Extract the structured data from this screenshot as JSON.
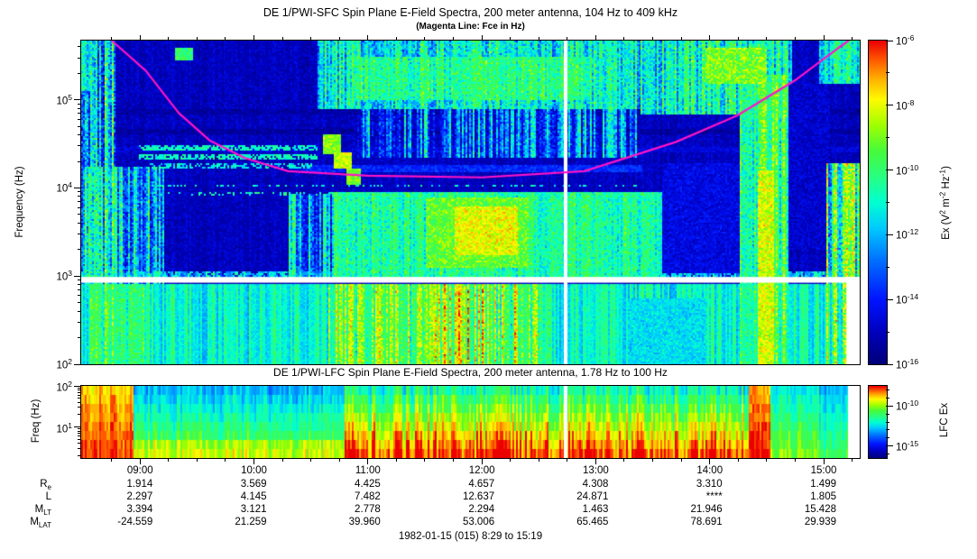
{
  "header": {
    "title": "DE 1/PWI-SFC  Spin Plane E-Field Spectra, 200 meter antenna, 104 Hz to 409 kHz",
    "subtitle": "(Magenta Line: Fce in Hz)"
  },
  "sfc_panel": {
    "ylabel": "Frequency (Hz)",
    "ytick_exponents": [
      5,
      4,
      3,
      2
    ],
    "colorbar": {
      "label": "Ex (V^2 m^-2 Hz^-1)",
      "label_parts": [
        [
          "t",
          "Ex (V"
        ],
        [
          "sup",
          "2"
        ],
        [
          "t",
          " m"
        ],
        [
          "sup",
          "-2"
        ],
        [
          "t",
          " Hz"
        ],
        [
          "sup",
          "-1"
        ],
        [
          "t",
          ")"
        ]
      ],
      "tick_exponents": [
        -6,
        -8,
        -10,
        -12,
        -14,
        -16
      ],
      "range_log": [
        -16,
        -6
      ]
    }
  },
  "lfc_panel": {
    "title": "DE 1/PWI-LFC  Spin Plane E-Field Spectra, 200 meter antenna, 1.78 Hz to 100 Hz",
    "ylabel": "Freq (Hz)",
    "ytick_exponents": [
      2,
      1
    ],
    "colorbar": {
      "label": "LFC Ex",
      "tick_exponents": [
        -10,
        -15
      ],
      "range_log": [
        -16.5,
        -7.5
      ]
    }
  },
  "xaxis": {
    "tick_labels": [
      "09:00",
      "10:00",
      "11:00",
      "12:00",
      "13:00",
      "14:00",
      "15:00"
    ],
    "tick_hours": [
      9,
      10,
      11,
      12,
      13,
      14,
      15
    ]
  },
  "ephemeris": {
    "rows": [
      {
        "label_main": "R",
        "label_sub": "e",
        "values": [
          "1.914",
          "3.569",
          "4.425",
          "4.657",
          "4.308",
          "3.310",
          "1.499"
        ]
      },
      {
        "label_main": "L",
        "label_sub": "",
        "values": [
          "2.297",
          "4.145",
          "7.482",
          "12.637",
          "24.871",
          "****",
          "1.805"
        ]
      },
      {
        "label_main": "M",
        "label_sub": "LT",
        "values": [
          "3.394",
          "3.121",
          "2.778",
          "2.294",
          "1.463",
          "21.946",
          "15.428"
        ]
      },
      {
        "label_main": "M",
        "label_sub": "LAT",
        "values": [
          "-24.559",
          "21.259",
          "39.960",
          "53.006",
          "65.465",
          "78.691",
          "29.939"
        ]
      }
    ]
  },
  "footer": "1982-01-15 (015) 8:29 to 15:19",
  "chart_data": {
    "type": "heatmap",
    "subtype": "spectrogram",
    "time_range_hours": [
      8.4833,
      15.3167
    ],
    "time_start_label": "8:29",
    "time_end_label": "15:19",
    "data_end_hour": 15.2,
    "data_gap_hour": 12.735,
    "colormap_stops": [
      [
        0.0,
        0,
        0,
        120
      ],
      [
        0.1,
        0,
        0,
        190
      ],
      [
        0.2,
        0,
        20,
        255
      ],
      [
        0.32,
        0,
        110,
        255
      ],
      [
        0.42,
        0,
        200,
        255
      ],
      [
        0.5,
        0,
        255,
        210
      ],
      [
        0.58,
        40,
        255,
        130
      ],
      [
        0.66,
        70,
        250,
        60
      ],
      [
        0.74,
        160,
        255,
        0
      ],
      [
        0.82,
        255,
        250,
        0
      ],
      [
        0.88,
        255,
        180,
        0
      ],
      [
        0.94,
        255,
        90,
        0
      ],
      [
        1.0,
        235,
        0,
        0
      ]
    ],
    "fce": {
      "color": "#ff14c8",
      "points_hour_loghz": [
        [
          8.75,
          5.672
        ],
        [
          9.05,
          5.33
        ],
        [
          9.34,
          4.85
        ],
        [
          9.61,
          4.54
        ],
        [
          9.92,
          4.34
        ],
        [
          10.3,
          4.19
        ],
        [
          11.0,
          4.14
        ],
        [
          12.0,
          4.12
        ],
        [
          12.9,
          4.19
        ],
        [
          13.7,
          4.52
        ],
        [
          14.24,
          4.82
        ],
        [
          14.76,
          5.23
        ],
        [
          15.13,
          5.59
        ],
        [
          15.22,
          5.672
        ]
      ]
    },
    "sfc": {
      "freq_log_range": [
        2.0,
        5.672
      ],
      "value_log_range": [
        -16,
        -6
      ],
      "white_gap_logf": [
        2.925,
        2.99
      ],
      "base_low_v": 0.5,
      "base_high_v": 0.1,
      "low_band_top_logf": 2.93,
      "features": [
        {
          "t": [
            8.483,
            15.317
          ],
          "f": [
            4.62,
            4.69
          ],
          "v": 0.06,
          "vr": 0.02,
          "mode": "set"
        },
        {
          "t": [
            8.483,
            15.317
          ],
          "f": [
            4.84,
            4.91
          ],
          "v": 0.06,
          "vr": 0.02,
          "mode": "set"
        },
        {
          "t": [
            8.483,
            15.317
          ],
          "f": [
            4.41,
            4.47
          ],
          "v": 0.14,
          "vr": 0.03,
          "mode": "set"
        },
        {
          "t": [
            8.483,
            8.58
          ],
          "f": [
            5.1,
            5.672
          ],
          "v": 0.45,
          "vr": 0.2,
          "streak": 0.5
        },
        {
          "t": [
            8.483,
            8.78
          ],
          "f": [
            2.0,
            5.672
          ],
          "v": 0.42,
          "vr": 0.3,
          "streak": 0.9
        },
        {
          "t": [
            8.483,
            9.2
          ],
          "f": [
            2.93,
            4.25
          ],
          "v": 0.4,
          "vr": 0.25,
          "streak": 0.7
        },
        {
          "t": [
            8.55,
            9.05
          ],
          "f": [
            2.0,
            2.93
          ],
          "v": 0.6,
          "vr": 0.15,
          "streak": 0.4
        },
        {
          "t": [
            8.98,
            10.55
          ],
          "f": [
            4.44,
            4.5
          ],
          "v": 0.52,
          "vr": 0.1,
          "dash": 0.7
        },
        {
          "t": [
            8.98,
            10.55
          ],
          "f": [
            4.33,
            4.385
          ],
          "v": 0.52,
          "vr": 0.1,
          "dash": 0.7
        },
        {
          "t": [
            9.08,
            10.5
          ],
          "f": [
            4.24,
            4.285
          ],
          "v": 0.48,
          "vr": 0.1,
          "dash": 0.55
        },
        {
          "t": [
            9.0,
            13.35
          ],
          "f": [
            4.02,
            4.055
          ],
          "v": 0.5,
          "vr": 0.12,
          "dash": 0.32
        },
        {
          "t": [
            9.15,
            13.3
          ],
          "f": [
            3.92,
            3.955
          ],
          "v": 0.52,
          "vr": 0.12,
          "dash": 0.28
        },
        {
          "t": [
            9.3,
            9.45
          ],
          "f": [
            5.45,
            5.6
          ],
          "v": 0.6,
          "vr": 0.15
        },
        {
          "t": [
            10.55,
            13.38
          ],
          "f": [
            4.9,
            5.672
          ],
          "v": 0.48,
          "vr": 0.22,
          "streak": 0.5
        },
        {
          "t": [
            10.85,
            12.95
          ],
          "f": [
            5.0,
            5.5
          ],
          "v": 0.56,
          "vr": 0.18,
          "streak": 0.3
        },
        {
          "t": [
            10.9,
            13.35
          ],
          "f": [
            4.35,
            4.95
          ],
          "v": 0.26,
          "vr": 0.22,
          "streak": 0.9
        },
        {
          "t": [
            13.38,
            14.72
          ],
          "f": [
            4.85,
            5.672
          ],
          "v": 0.5,
          "vr": 0.22,
          "streak": 0.5
        },
        {
          "t": [
            13.95,
            14.5
          ],
          "f": [
            5.2,
            5.6
          ],
          "v": 0.7,
          "vr": 0.18
        },
        {
          "t": [
            14.95,
            15.317
          ],
          "f": [
            5.2,
            5.672
          ],
          "v": 0.5,
          "vr": 0.2,
          "streak": 0.4
        },
        {
          "t": [
            10.3,
            10.72
          ],
          "f": [
            2.99,
            3.95
          ],
          "v": 0.34,
          "vr": 0.22,
          "streak": 0.8
        },
        {
          "t": [
            10.7,
            13.58
          ],
          "f": [
            2.99,
            3.97
          ],
          "v": 0.55,
          "vr": 0.16,
          "streak": 0.3
        },
        {
          "t": [
            11.5,
            12.4
          ],
          "f": [
            3.1,
            3.9
          ],
          "v": 0.68,
          "vr": 0.16
        },
        {
          "t": [
            11.75,
            12.3
          ],
          "f": [
            3.25,
            3.8
          ],
          "v": 0.8,
          "vr": 0.12
        },
        {
          "t": [
            10.4,
            13.4
          ],
          "f": [
            4.18,
            4.27
          ],
          "v": 0.22,
          "vr": 0.06
        },
        {
          "t": [
            8.483,
            15.2
          ],
          "f": [
            2.99,
            3.07
          ],
          "v": 0.42,
          "vr": 0.15,
          "streak": 0.4,
          "dash": 0.85
        },
        {
          "t": [
            10.65,
            12.6
          ],
          "f": [
            2.0,
            2.93
          ],
          "v": 0.62,
          "vr": 0.18,
          "streak": 0.6
        },
        {
          "t": [
            11.55,
            12.35
          ],
          "f": [
            2.0,
            2.93
          ],
          "v": 0.7,
          "vr": 0.2,
          "streak": 0.7
        },
        {
          "t": [
            13.28,
            13.95
          ],
          "f": [
            2.0,
            2.75
          ],
          "v": 0.45,
          "vr": 0.08,
          "mode": "set"
        },
        {
          "t": [
            14.25,
            14.68
          ],
          "f": [
            2.0,
            5.3
          ],
          "v": 0.58,
          "vr": 0.2,
          "streak": 0.5
        },
        {
          "t": [
            14.42,
            14.55
          ],
          "f": [
            2.0,
            4.2
          ],
          "v": 0.78,
          "vr": 0.15
        },
        {
          "t": [
            13.58,
            14.25
          ],
          "f": [
            3.05,
            4.3
          ],
          "v": 0.15,
          "vr": 0.08,
          "mode": "set"
        },
        {
          "t": [
            14.68,
            15.05
          ],
          "f": [
            3.3,
            5.2
          ],
          "v": 0.12,
          "vr": 0.06,
          "mode": "set"
        },
        {
          "t": [
            15.02,
            15.317
          ],
          "f": [
            2.0,
            4.3
          ],
          "v": 0.55,
          "vr": 0.25,
          "streak": 0.8
        },
        {
          "t": [
            10.6,
            10.75
          ],
          "f": [
            4.4,
            4.62
          ],
          "v": 0.72,
          "vr": 0.1
        },
        {
          "t": [
            10.7,
            10.85
          ],
          "f": [
            4.22,
            4.42
          ],
          "v": 0.78,
          "vr": 0.1
        },
        {
          "t": [
            10.8,
            10.93
          ],
          "f": [
            4.05,
            4.24
          ],
          "v": 0.7,
          "vr": 0.1
        }
      ]
    },
    "lfc": {
      "freq_log_range": [
        0.25,
        2.0
      ],
      "value_log_range": [
        -16.5,
        -7.5
      ],
      "periods": [
        {
          "t": [
            8.483,
            8.93
          ],
          "top": 0.85,
          "bot": 0.97,
          "cn": 0.1
        },
        {
          "t": [
            8.93,
            10.78
          ],
          "top": 0.4,
          "bot": 0.7,
          "cn": 0.14,
          "bedge": true
        },
        {
          "t": [
            10.78,
            14.33
          ],
          "top": 0.54,
          "bot": 0.97,
          "cn": 0.26
        },
        {
          "t": [
            14.33,
            14.53
          ],
          "top": 0.88,
          "bot": 1.0,
          "cn": 0.06
        },
        {
          "t": [
            14.53,
            14.95
          ],
          "top": 0.48,
          "bot": 0.72,
          "cn": 0.12
        },
        {
          "t": [
            14.95,
            15.2
          ],
          "top": 0.4,
          "bot": 0.62,
          "cn": 0.1
        }
      ]
    }
  }
}
